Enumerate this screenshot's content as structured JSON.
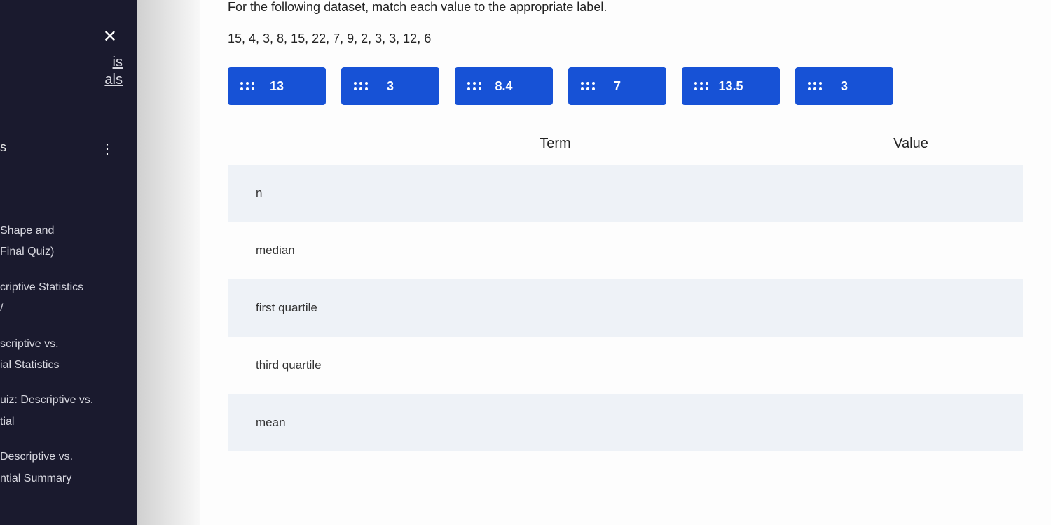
{
  "sidebar": {
    "links": [
      "is",
      "als"
    ],
    "s_label": "s",
    "items": [
      "Shape and",
      "Final Quiz)",
      "criptive Statistics",
      "/",
      "scriptive vs.",
      "ial Statistics",
      "uiz: Descriptive vs.",
      "tial",
      "Descriptive vs.",
      "ntial Summary"
    ]
  },
  "question": {
    "prompt": "For the following dataset, match each value to the appropriate label.",
    "dataset": "15, 4, 3, 8, 15, 22, 7, 9, 2, 3, 3, 12, 6"
  },
  "chips": {
    "values": [
      "13",
      "3",
      "8.4",
      "7",
      "13.5",
      "3"
    ],
    "bg_color": "#1752d6",
    "text_color": "#ffffff"
  },
  "table": {
    "headers": {
      "term": "Term",
      "value": "Value"
    },
    "rows": [
      "n",
      "median",
      "first quartile",
      "third quartile",
      "mean"
    ],
    "alt_row_bg": "#eef2f7"
  }
}
